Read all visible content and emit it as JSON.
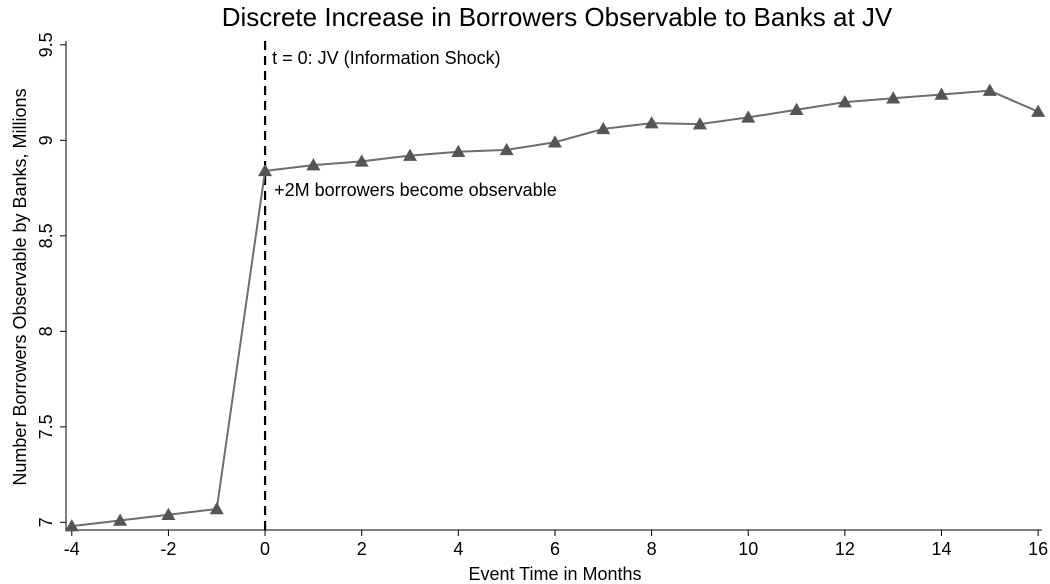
{
  "chart_data": {
    "type": "line",
    "title": "Discrete Increase in Borrowers Observable to Banks at JV",
    "x_label": "Event Time in Months",
    "y_label": "Number Borrowers Observable by Banks, Millions",
    "x": [
      -4,
      -3,
      -2,
      -1,
      0,
      1,
      2,
      3,
      4,
      5,
      6,
      7,
      8,
      9,
      10,
      11,
      12,
      13,
      14,
      15,
      16
    ],
    "values": [
      6.98,
      7.01,
      7.04,
      7.07,
      8.84,
      8.87,
      8.89,
      8.92,
      8.94,
      8.95,
      8.99,
      9.06,
      9.09,
      9.085,
      9.12,
      9.16,
      9.2,
      9.22,
      9.24,
      9.26,
      9.15
    ],
    "color": "#6e6e6e",
    "marker_color": "#555555",
    "xlim": [
      -4.12,
      16.08
    ],
    "ylim": [
      6.96,
      9.52
    ],
    "xticks": [
      -4,
      -2,
      0,
      2,
      4,
      6,
      8,
      10,
      12,
      14,
      16
    ],
    "yticks": [
      7,
      7.5,
      8,
      8.5,
      9,
      9.5
    ],
    "vline": {
      "x": 0,
      "label": "t = 0: JV (Information Shock)"
    },
    "annotation": "+2M borrowers become observable"
  }
}
